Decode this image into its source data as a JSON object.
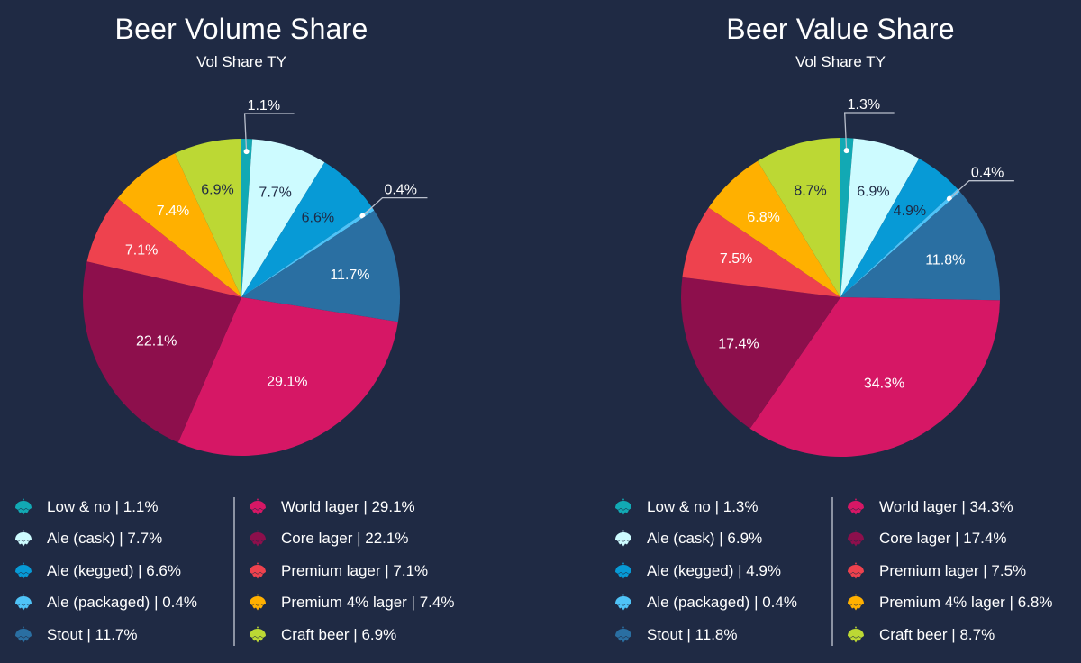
{
  "chart_data": [
    {
      "type": "pie",
      "title": "Beer Volume Share",
      "subtitle": "Vol Share TY",
      "categories": [
        "Low & no",
        "Ale (cask)",
        "Ale (kegged)",
        "Ale (packaged)",
        "Stout",
        "World lager",
        "Core lager",
        "Premium lager",
        "Premium 4% lager",
        "Craft beer"
      ],
      "values": [
        1.1,
        7.7,
        6.6,
        0.4,
        11.7,
        29.1,
        22.1,
        7.1,
        7.4,
        6.9
      ],
      "labels": [
        "1.1%",
        "7.7%",
        "6.6%",
        "0.4%",
        "11.7%",
        "29.1%",
        "22.1%",
        "7.1%",
        "7.4%",
        "6.9%"
      ],
      "legend": [
        "Low & no | 1.1%",
        "Ale (cask) | 7.7%",
        "Ale (kegged) | 6.6%",
        "Ale (packaged) | 0.4%",
        "Stout | 11.7%",
        "World lager | 29.1%",
        "Core lager | 22.1%",
        "Premium lager | 7.1%",
        "Premium 4% lager | 7.4%",
        "Craft beer | 6.9%"
      ],
      "legend_placement": "bottom",
      "unit": "%"
    },
    {
      "type": "pie",
      "title": "Beer Value Share",
      "subtitle": "Vol Share TY",
      "categories": [
        "Low & no",
        "Ale (cask)",
        "Ale (kegged)",
        "Ale (packaged)",
        "Stout",
        "World lager",
        "Core lager",
        "Premium lager",
        "Premium 4% lager",
        "Craft beer"
      ],
      "values": [
        1.3,
        6.9,
        4.9,
        0.4,
        11.8,
        34.3,
        17.4,
        7.5,
        6.8,
        8.7
      ],
      "labels": [
        "1.3%",
        "6.9%",
        "4.9%",
        "0.4%",
        "11.8%",
        "34.3%",
        "17.4%",
        "7.5%",
        "6.8%",
        "8.7%"
      ],
      "legend": [
        "Low & no | 1.3%",
        "Ale (cask) | 6.9%",
        "Ale (kegged) | 4.9%",
        "Ale (packaged) | 0.4%",
        "Stout | 11.8%",
        "World lager | 34.3%",
        "Core lager | 17.4%",
        "Premium lager | 7.5%",
        "Premium 4% lager | 6.8%",
        "Craft beer | 8.7%"
      ],
      "legend_placement": "bottom",
      "unit": "%"
    }
  ],
  "colors": [
    "#12a9b4",
    "#cdfbff",
    "#079ad6",
    "#4fc3f7",
    "#2a6fa2",
    "#d61765",
    "#8d0f4c",
    "#ee424e",
    "#ffb000",
    "#bcd834"
  ],
  "label_colors": [
    "#ffffff",
    "#1f2a44",
    "#1f2a44",
    "#ffffff",
    "#ffffff",
    "#ffffff",
    "#ffffff",
    "#ffffff",
    "#ffffff",
    "#1f2a44"
  ],
  "legend_icon": "hop-icon",
  "background": "#1f2a44"
}
